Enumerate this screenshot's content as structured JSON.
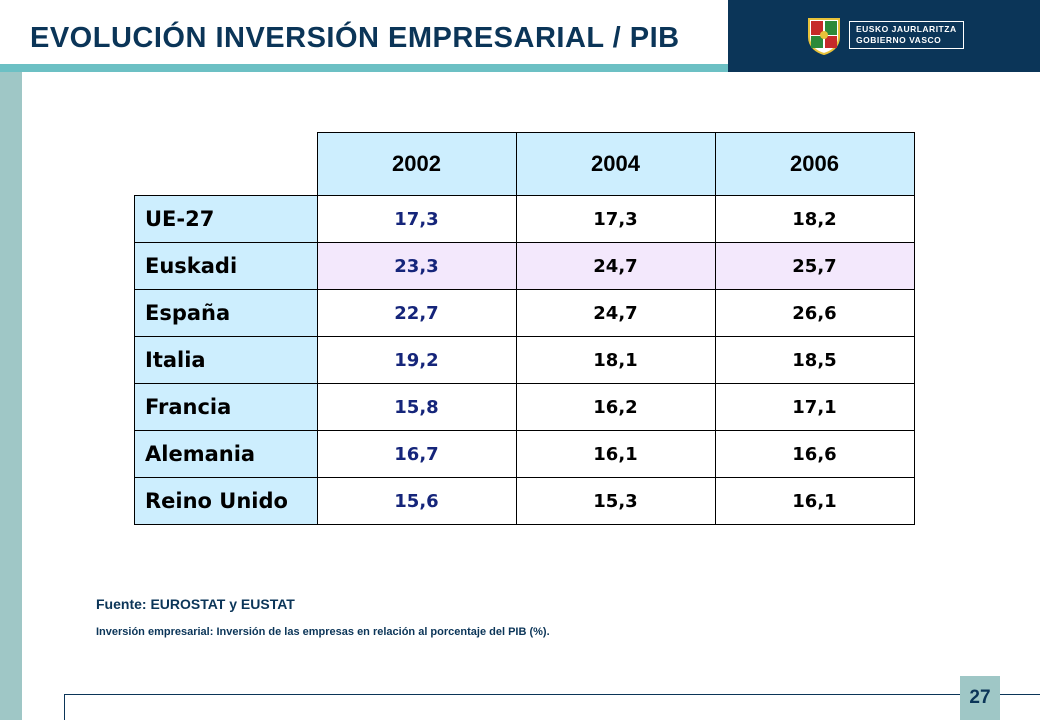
{
  "header": {
    "title": "EVOLUCIÓN INVERSIÓN EMPRESARIAL / PIB",
    "logo_line1": "EUSKO JAURLARITZA",
    "logo_line2": "GOBIERNO VASCO"
  },
  "table": {
    "columns": [
      "2002",
      "2004",
      "2006"
    ],
    "rows": [
      {
        "label": "UE-27",
        "values": [
          "17,3",
          "17,3",
          "18,2"
        ]
      },
      {
        "label": "Euskadi",
        "values": [
          "23,3",
          "24,7",
          "25,7"
        ]
      },
      {
        "label": "España",
        "values": [
          "22,7",
          "24,7",
          "26,6"
        ]
      },
      {
        "label": "Italia",
        "values": [
          "19,2",
          "18,1",
          "18,5"
        ]
      },
      {
        "label": "Francia",
        "values": [
          "15,8",
          "16,2",
          "17,1"
        ]
      },
      {
        "label": "Alemania",
        "values": [
          "16,7",
          "16,1",
          "16,6"
        ]
      },
      {
        "label": "Reino Unido",
        "values": [
          "15,6",
          "15,3",
          "16,1"
        ]
      }
    ]
  },
  "footer": {
    "source": "Fuente: EUROSTAT y EUSTAT",
    "note": "Inversión empresarial: Inversión de las empresas en relación al porcentaje del PIB (%).",
    "page_number": "27"
  },
  "colors": {
    "navy": "#0b3558",
    "teal_accent": "#6cc0c4",
    "header_cell": "#cdeefe",
    "highlight_row": "#f3e8fc"
  }
}
